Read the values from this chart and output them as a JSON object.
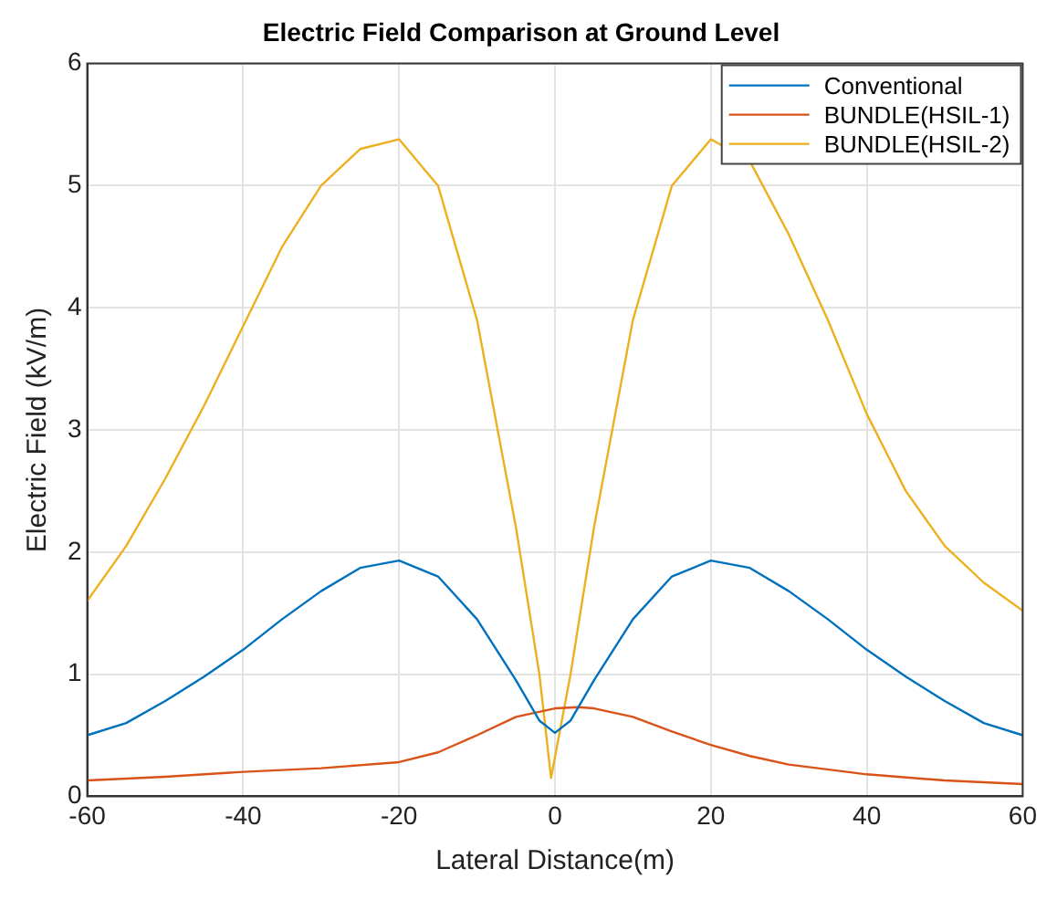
{
  "chart_data": {
    "type": "line",
    "title": "Electric Field Comparison at Ground Level",
    "xlabel": "Lateral Distance(m)",
    "ylabel": "Electric Field (kV/m)",
    "xlim": [
      -60,
      60
    ],
    "xticks": [
      -60,
      -40,
      -20,
      0,
      20,
      40,
      60
    ],
    "ylim": [
      0,
      6
    ],
    "yticks": [
      0,
      1,
      2,
      3,
      4,
      5,
      6
    ],
    "grid": true,
    "legend": "top right",
    "marker": "none",
    "line_style": "solid",
    "series": [
      {
        "name": "Conventional",
        "color": "#0072bd",
        "x": [
          -60,
          -55,
          -50,
          -45,
          -40,
          -35,
          -30,
          -25,
          -20,
          -15,
          -10,
          -5,
          -2,
          0,
          2,
          5,
          10,
          15,
          20,
          25,
          30,
          35,
          40,
          45,
          50,
          55,
          60
        ],
        "values": [
          0.5,
          0.6,
          0.78,
          0.98,
          1.2,
          1.45,
          1.68,
          1.87,
          1.93,
          1.8,
          1.45,
          0.95,
          0.62,
          0.52,
          0.62,
          0.95,
          1.45,
          1.8,
          1.93,
          1.87,
          1.68,
          1.45,
          1.2,
          0.98,
          0.78,
          0.6,
          0.5
        ]
      },
      {
        "name": "BUNDLE(HSIL-1)",
        "color": "#d95319",
        "x": [
          -60,
          -50,
          -40,
          -30,
          -20,
          -15,
          -10,
          -5,
          0,
          3,
          5,
          10,
          15,
          20,
          25,
          30,
          40,
          50,
          60
        ],
        "values": [
          0.13,
          0.16,
          0.2,
          0.23,
          0.28,
          0.36,
          0.5,
          0.65,
          0.72,
          0.73,
          0.72,
          0.65,
          0.53,
          0.42,
          0.33,
          0.26,
          0.18,
          0.13,
          0.1
        ]
      },
      {
        "name": "BUNDLE(HSIL-2)",
        "color": "#edb120",
        "x": [
          -60,
          -55,
          -50,
          -45,
          -40,
          -35,
          -30,
          -25,
          -20,
          -15,
          -10,
          -5,
          -2,
          -0.5,
          2,
          5,
          10,
          15,
          20,
          25,
          30,
          35,
          40,
          45,
          50,
          55,
          60
        ],
        "values": [
          1.6,
          2.05,
          2.6,
          3.2,
          3.85,
          4.5,
          5.0,
          5.3,
          5.38,
          5.0,
          3.9,
          2.2,
          1.0,
          0.15,
          1.0,
          2.2,
          3.9,
          5.0,
          5.38,
          5.2,
          4.6,
          3.9,
          3.13,
          2.5,
          2.05,
          1.75,
          1.52
        ]
      }
    ]
  }
}
